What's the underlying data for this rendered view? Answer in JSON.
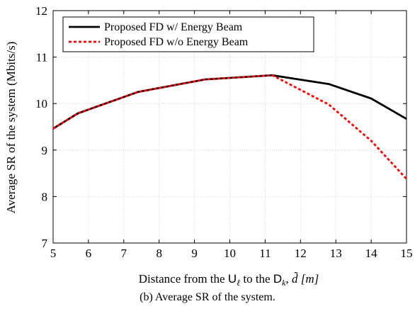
{
  "chart_data": {
    "type": "line",
    "xlabel": "Distance from the Uℓ to the Dk, d̃ [m]",
    "ylabel": "Average SR of the system (Mbits/s)",
    "xlim": [
      5,
      15
    ],
    "ylim": [
      7,
      12
    ],
    "xticks": [
      5,
      6,
      7,
      8,
      9,
      10,
      11,
      12,
      13,
      14,
      15
    ],
    "yticks": [
      7,
      8,
      9,
      10,
      11,
      12
    ],
    "grid": true,
    "legend_position": "top-left",
    "series": [
      {
        "name": "Proposed FD w/ Energy Beam",
        "color": "#000000",
        "dash": "solid",
        "x": [
          5,
          5.7,
          7.4,
          9.3,
          11.2,
          12.8,
          14,
          15
        ],
        "y": [
          9.46,
          9.79,
          10.25,
          10.52,
          10.61,
          10.42,
          10.11,
          9.67
        ]
      },
      {
        "name": "Proposed FD w/o Energy Beam",
        "color": "#ff0000",
        "dash": "dashed",
        "x": [
          5,
          5.7,
          7.4,
          9.3,
          11.2,
          12.8,
          14,
          15
        ],
        "y": [
          9.46,
          9.79,
          10.25,
          10.52,
          10.61,
          9.98,
          9.2,
          8.38
        ]
      }
    ]
  },
  "xlabel_parts": {
    "prefix": "Distance from the ",
    "u": "U",
    "u_sub": "ℓ",
    "middle": " to the ",
    "d": "D",
    "d_sub": "k",
    "comma": ", ",
    "dvar": "d̃",
    "unit": " [m]"
  },
  "caption": "(b) Average SR of the system."
}
